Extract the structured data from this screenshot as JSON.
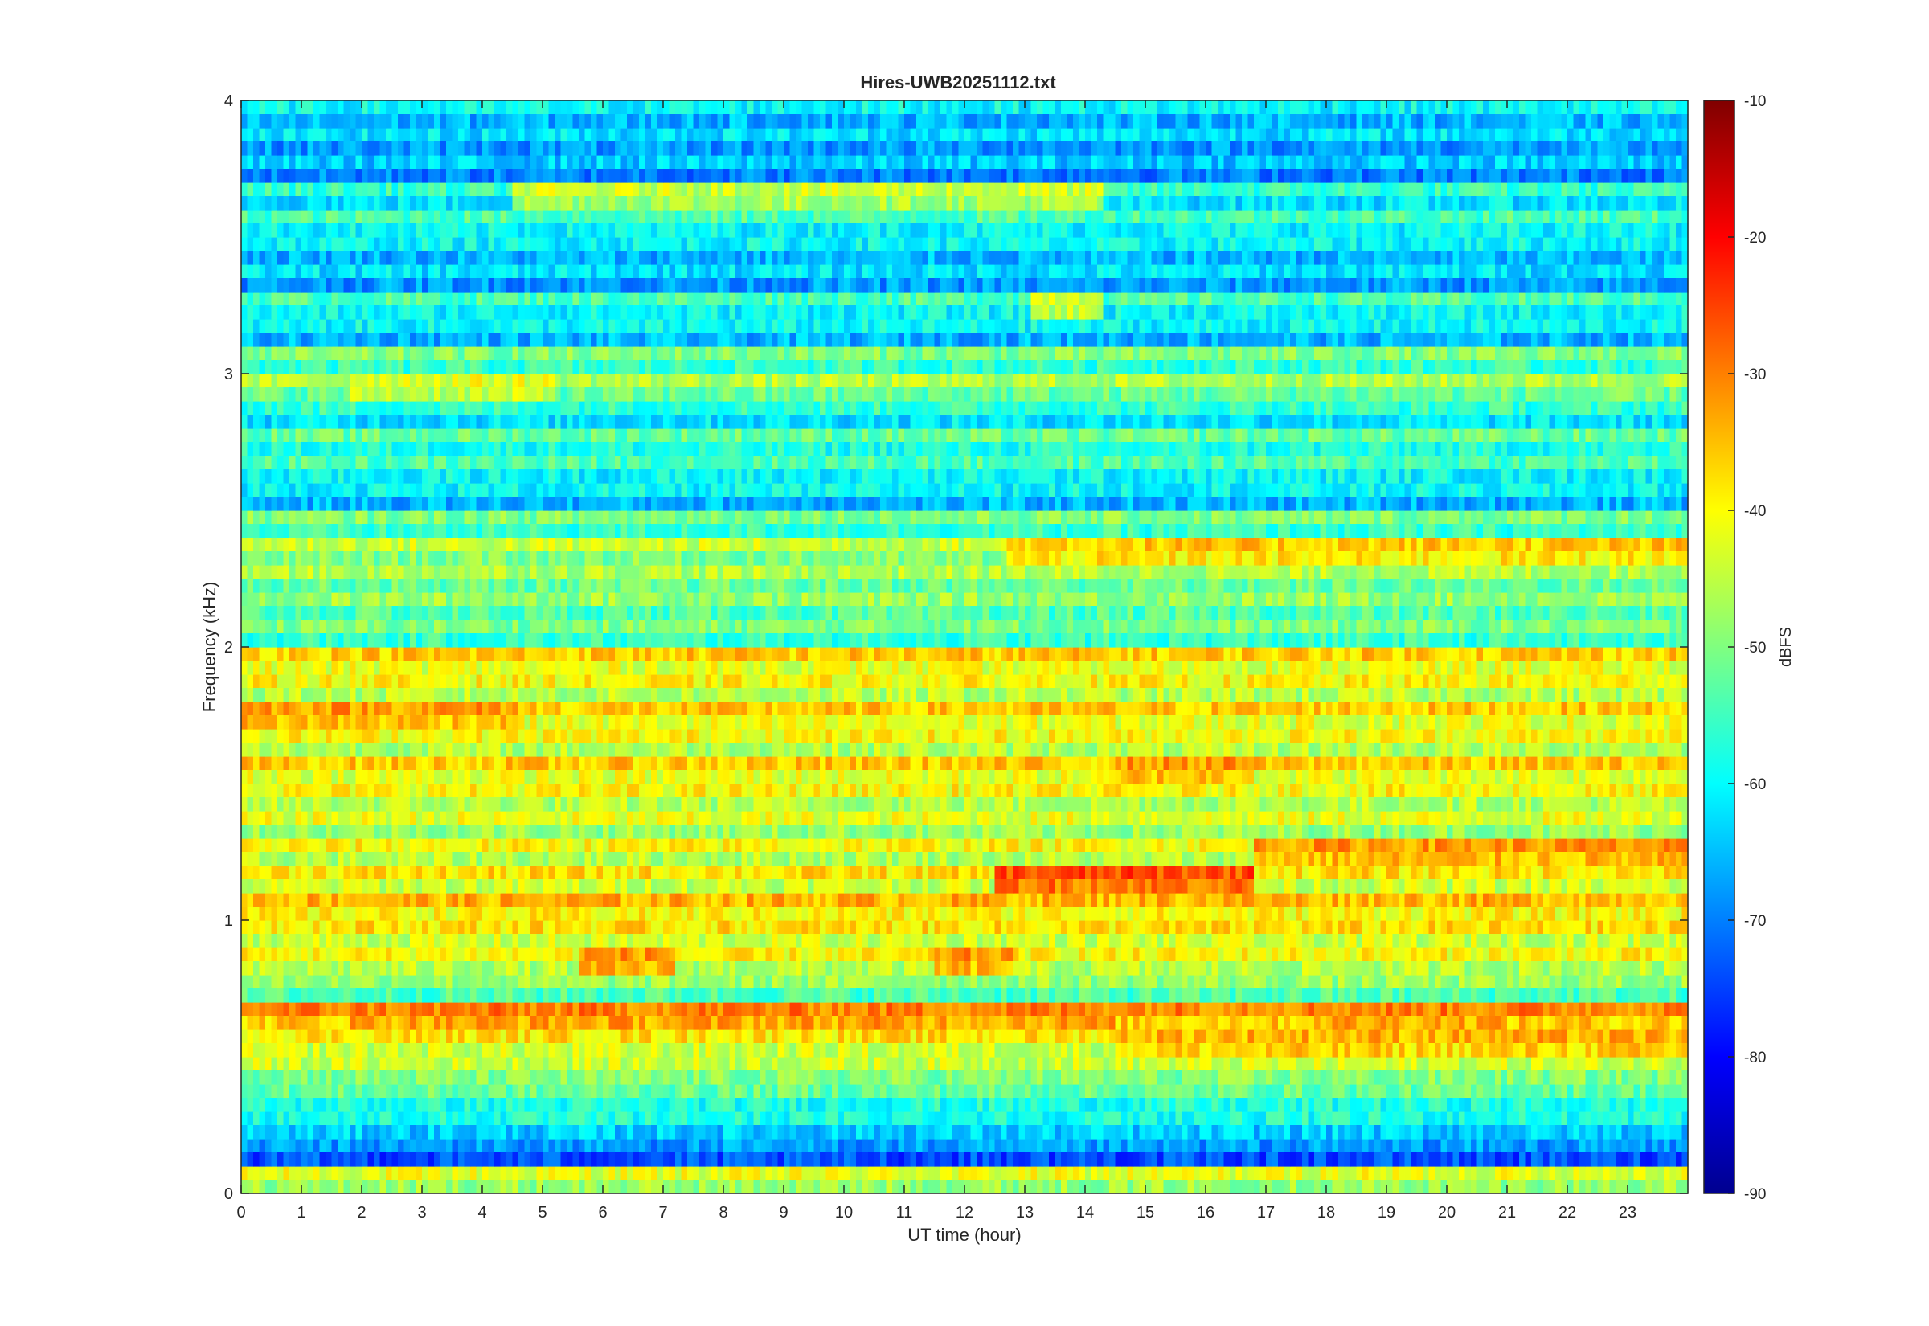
{
  "chart_data": {
    "type": "heatmap",
    "title": "Hires-UWB20251112.txt",
    "xlabel": "UT time (hour)",
    "ylabel": "Frequency (kHz)",
    "xlim": [
      0,
      24
    ],
    "ylim": [
      0,
      4
    ],
    "x_ticks": [
      "0",
      "1",
      "2",
      "3",
      "4",
      "5",
      "6",
      "7",
      "8",
      "9",
      "10",
      "11",
      "12",
      "13",
      "14",
      "15",
      "16",
      "17",
      "18",
      "19",
      "20",
      "21",
      "22",
      "23"
    ],
    "y_ticks": [
      "0",
      "1",
      "2",
      "3",
      "4"
    ],
    "colorbar": {
      "label": "dBFS",
      "colormap": "jet",
      "clim": [
        -90,
        -10
      ],
      "ticks": [
        "-90",
        "-80",
        "-70",
        "-60",
        "-50",
        "-40",
        "-30",
        "-20",
        "-10"
      ]
    },
    "grid": false,
    "frequency_bands_khz": [
      {
        "center": 0.05,
        "level_dbfs": -42
      },
      {
        "center": 0.15,
        "level_dbfs": -68
      },
      {
        "center": 0.25,
        "level_dbfs": -58
      },
      {
        "center": 0.35,
        "level_dbfs": -52
      },
      {
        "center": 0.45,
        "level_dbfs": -44
      },
      {
        "center": 0.55,
        "level_dbfs": -38
      },
      {
        "center": 0.65,
        "level_dbfs": -30
      },
      {
        "center": 0.75,
        "level_dbfs": -48
      },
      {
        "center": 0.85,
        "level_dbfs": -40
      },
      {
        "center": 0.95,
        "level_dbfs": -38
      },
      {
        "center": 1.05,
        "level_dbfs": -34
      },
      {
        "center": 1.15,
        "level_dbfs": -38
      },
      {
        "center": 1.25,
        "level_dbfs": -40
      },
      {
        "center": 1.35,
        "level_dbfs": -42
      },
      {
        "center": 1.45,
        "level_dbfs": -40
      },
      {
        "center": 1.55,
        "level_dbfs": -36
      },
      {
        "center": 1.65,
        "level_dbfs": -40
      },
      {
        "center": 1.75,
        "level_dbfs": -36
      },
      {
        "center": 1.85,
        "level_dbfs": -40
      },
      {
        "center": 1.95,
        "level_dbfs": -36
      },
      {
        "center": 2.05,
        "level_dbfs": -50
      },
      {
        "center": 2.15,
        "level_dbfs": -48
      },
      {
        "center": 2.25,
        "level_dbfs": -46
      },
      {
        "center": 2.35,
        "level_dbfs": -44
      },
      {
        "center": 2.45,
        "level_dbfs": -50
      },
      {
        "center": 2.55,
        "level_dbfs": -60
      },
      {
        "center": 2.65,
        "level_dbfs": -54
      },
      {
        "center": 2.75,
        "level_dbfs": -52
      },
      {
        "center": 2.85,
        "level_dbfs": -56
      },
      {
        "center": 2.95,
        "level_dbfs": -46
      },
      {
        "center": 3.05,
        "level_dbfs": -50
      },
      {
        "center": 3.15,
        "level_dbfs": -60
      },
      {
        "center": 3.25,
        "level_dbfs": -54
      },
      {
        "center": 3.35,
        "level_dbfs": -62
      },
      {
        "center": 3.45,
        "level_dbfs": -60
      },
      {
        "center": 3.55,
        "level_dbfs": -54
      },
      {
        "center": 3.65,
        "level_dbfs": -56
      },
      {
        "center": 3.75,
        "level_dbfs": -64
      },
      {
        "center": 3.85,
        "level_dbfs": -62
      },
      {
        "center": 3.95,
        "level_dbfs": -60
      }
    ],
    "events": [
      {
        "freq_khz": 1.15,
        "t_start": 12.5,
        "t_end": 16.8,
        "level_dbfs": -26
      },
      {
        "freq_khz": 0.65,
        "t_start": 1.8,
        "t_end": 14.5,
        "level_dbfs": -30
      },
      {
        "freq_khz": 0.55,
        "t_start": 14.6,
        "t_end": 24,
        "level_dbfs": -34
      },
      {
        "freq_khz": 1.25,
        "t_start": 16.8,
        "t_end": 24,
        "level_dbfs": -32
      },
      {
        "freq_khz": 2.35,
        "t_start": 12.7,
        "t_end": 24,
        "level_dbfs": -36
      },
      {
        "freq_khz": 1.55,
        "t_start": 14.6,
        "t_end": 16.8,
        "level_dbfs": -32
      },
      {
        "freq_khz": 1.75,
        "t_start": 0,
        "t_end": 4.6,
        "level_dbfs": -32
      },
      {
        "freq_khz": 0.85,
        "t_start": 5.6,
        "t_end": 7.2,
        "level_dbfs": -32
      },
      {
        "freq_khz": 0.85,
        "t_start": 11.5,
        "t_end": 12.8,
        "level_dbfs": -32
      },
      {
        "freq_khz": 0.65,
        "t_start": 17.8,
        "t_end": 21,
        "level_dbfs": -30
      },
      {
        "freq_khz": 3.65,
        "t_start": 4.5,
        "t_end": 14.3,
        "level_dbfs": -44
      },
      {
        "freq_khz": 3.25,
        "t_start": 13.1,
        "t_end": 14.3,
        "level_dbfs": -42
      },
      {
        "freq_khz": 2.95,
        "t_start": 1.8,
        "t_end": 5.2,
        "level_dbfs": -42
      }
    ]
  }
}
